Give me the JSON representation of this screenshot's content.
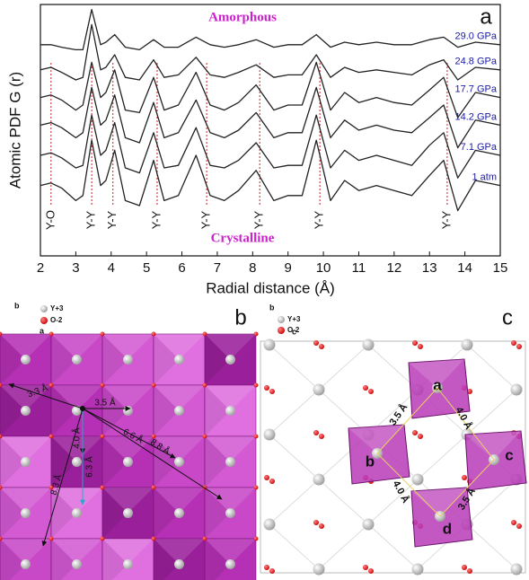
{
  "chart_data": {
    "type": "line",
    "xlabel": "Radial distance (Å)",
    "ylabel": "Atomic PDF G (r)",
    "x": [
      2,
      2.3,
      2.6,
      3.0,
      3.2,
      3.45,
      3.7,
      3.85,
      4.1,
      4.4,
      4.8,
      5.2,
      5.5,
      5.9,
      6.4,
      6.8,
      7.2,
      7.6,
      8.1,
      8.6,
      9.0,
      9.4,
      9.8,
      10.2,
      10.6,
      11.0,
      11.5,
      12.0,
      12.5,
      13.0,
      13.4,
      13.8,
      14.3,
      15
    ],
    "xlim": [
      2,
      15
    ],
    "xticks": [
      2,
      3,
      4,
      5,
      6,
      7,
      8,
      9,
      10,
      11,
      12,
      13,
      14,
      15
    ],
    "ylim": [
      0,
      100
    ],
    "series": [
      {
        "name": "29.0 GPa",
        "color": "#222222",
        "values": [
          84,
          84,
          83,
          82,
          82,
          98,
          84,
          85,
          88,
          83,
          82,
          86,
          83,
          83,
          87,
          84,
          83,
          84,
          86,
          83,
          84,
          84,
          88,
          83,
          85,
          84,
          85,
          84,
          84,
          86,
          87,
          83,
          85,
          84
        ]
      },
      {
        "name": "24.8 GPa",
        "color": "#222222",
        "values": [
          74,
          75,
          73,
          70,
          71,
          92,
          74,
          75,
          80,
          71,
          70,
          78,
          71,
          72,
          79,
          72,
          71,
          73,
          76,
          71,
          72,
          72,
          80,
          71,
          75,
          73,
          74,
          73,
          72,
          76,
          78,
          70,
          75,
          74
        ]
      },
      {
        "name": "17.7 GPa",
        "color": "#222222",
        "values": [
          63,
          64,
          62,
          58,
          60,
          77,
          63,
          65,
          74,
          58,
          57,
          71,
          58,
          60,
          73,
          60,
          58,
          61,
          68,
          58,
          60,
          60,
          77,
          58,
          65,
          61,
          63,
          61,
          60,
          66,
          71,
          55,
          65,
          63
        ]
      },
      {
        "name": "14.2 GPa",
        "color": "#222222",
        "values": [
          52,
          53,
          51,
          47,
          49,
          67,
          52,
          54,
          64,
          47,
          45,
          61,
          47,
          49,
          62,
          49,
          47,
          50,
          57,
          47,
          49,
          49,
          67,
          47,
          54,
          50,
          52,
          50,
          49,
          55,
          60,
          43,
          54,
          52
        ]
      },
      {
        "name": "7.1 GPa",
        "color": "#222222",
        "values": [
          40,
          41,
          39,
          35,
          36,
          56,
          40,
          42,
          53,
          35,
          33,
          49,
          35,
          36,
          51,
          36,
          35,
          38,
          45,
          35,
          36,
          36,
          56,
          35,
          42,
          38,
          40,
          38,
          36,
          44,
          49,
          31,
          42,
          40
        ]
      },
      {
        "name": "1 atm",
        "color": "#222222",
        "values": [
          28,
          29,
          27,
          22,
          24,
          46,
          28,
          30,
          42,
          22,
          20,
          38,
          22,
          24,
          40,
          24,
          22,
          26,
          34,
          22,
          24,
          24,
          46,
          22,
          30,
          26,
          28,
          26,
          24,
          32,
          38,
          18,
          30,
          28
        ]
      }
    ],
    "legend_color": "#1a1aa8",
    "annotations": {
      "top": "Amorphous",
      "bottom": "Crystalline",
      "panel": "a"
    },
    "peaks": [
      {
        "x": 2.3,
        "label": "Y-O"
      },
      {
        "x": 3.45,
        "label": "Y-Y"
      },
      {
        "x": 4.05,
        "label": "Y-Y"
      },
      {
        "x": 5.3,
        "label": "Y-Y"
      },
      {
        "x": 6.7,
        "label": "Y-Y"
      },
      {
        "x": 8.2,
        "label": "Y-Y"
      },
      {
        "x": 9.9,
        "label": "Y-Y"
      },
      {
        "x": 13.5,
        "label": "Y-Y"
      }
    ]
  },
  "panel_b": {
    "label": "b",
    "axis_b": "b",
    "axis_a": "a",
    "legend": [
      "Y+3",
      "O-2"
    ],
    "distances": [
      "3.3 Å",
      "3.5 Å",
      "4.0 Å",
      "6.3 Å",
      "6.6 Å",
      "8.8 Å",
      "8.3 Å"
    ]
  },
  "panel_c": {
    "label": "c",
    "axis_b": "b",
    "axis_c": "c",
    "legend": [
      "Y+3",
      "O-2"
    ],
    "sites": [
      "a",
      "b",
      "c",
      "d"
    ],
    "distances": [
      "3.5 Å",
      "4.0 Å",
      "4.0 Å",
      "3.5 Å"
    ]
  }
}
